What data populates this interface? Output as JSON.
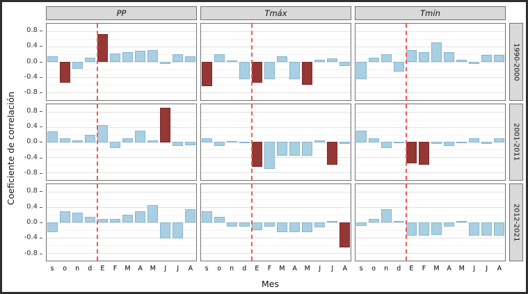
{
  "chart_data": {
    "type": "bar",
    "title": "",
    "xlabel": "Mes",
    "ylabel": "Coeficiente de correlación",
    "ylim": [
      -1.0,
      1.0
    ],
    "yticks": [
      0.8,
      0.4,
      0.0,
      -0.4,
      -0.8
    ],
    "yticks_minor": [
      0.6,
      0.2,
      -0.2,
      -0.6
    ],
    "x_categories": [
      "s",
      "o",
      "n",
      "d",
      "E",
      "F",
      "M",
      "A",
      "M",
      "J",
      "J",
      "A"
    ],
    "facet_cols": [
      "PP",
      "Tmáx",
      "Tmín"
    ],
    "facet_rows": [
      "1990-2000",
      "2001-2011",
      "2012-2021"
    ],
    "legend": "none",
    "grid": "on",
    "reference_line": {
      "between": [
        "d",
        "E"
      ],
      "position_index": 4,
      "style": "dashed",
      "color": "#f8564a"
    },
    "colors": {
      "bar": "#a9cfe3",
      "bar_border": "#86b6cd",
      "significant": "#953735",
      "significant_border": "#7a2b2a",
      "strip_bg": "#d9d9d9",
      "panel_border": "#707070"
    },
    "panels": [
      {
        "row": "1990-2000",
        "col": "PP",
        "values": [
          0.15,
          -0.55,
          -0.18,
          0.1,
          0.72,
          0.22,
          0.25,
          0.28,
          0.3,
          -0.06,
          0.2,
          0.15
        ],
        "significant": [
          false,
          true,
          false,
          false,
          true,
          false,
          false,
          false,
          false,
          false,
          false,
          false
        ]
      },
      {
        "row": "1990-2000",
        "col": "Tmáx",
        "values": [
          -0.65,
          0.2,
          0.03,
          -0.45,
          -0.55,
          -0.45,
          0.15,
          -0.45,
          -0.6,
          0.05,
          0.08,
          -0.12
        ],
        "significant": [
          true,
          false,
          false,
          false,
          true,
          false,
          false,
          false,
          true,
          false,
          false,
          false
        ]
      },
      {
        "row": "1990-2000",
        "col": "Tmín",
        "values": [
          -0.45,
          0.1,
          0.2,
          -0.25,
          0.3,
          0.25,
          0.5,
          0.25,
          0.05,
          -0.05,
          0.18,
          0.18
        ],
        "significant": [
          false,
          false,
          false,
          false,
          false,
          false,
          false,
          false,
          false,
          false,
          false,
          false
        ]
      },
      {
        "row": "2001-2011",
        "col": "PP",
        "values": [
          0.28,
          0.1,
          0.05,
          0.2,
          0.45,
          -0.15,
          0.1,
          0.3,
          0.05,
          0.9,
          -0.1,
          -0.08
        ],
        "significant": [
          false,
          false,
          false,
          false,
          false,
          false,
          false,
          false,
          false,
          true,
          false,
          false
        ]
      },
      {
        "row": "2001-2011",
        "col": "Tmáx",
        "values": [
          0.1,
          -0.1,
          0.03,
          -0.03,
          -0.65,
          -0.7,
          -0.35,
          -0.35,
          -0.35,
          0.05,
          -0.6,
          -0.05
        ],
        "significant": [
          false,
          false,
          false,
          false,
          true,
          false,
          false,
          false,
          false,
          false,
          true,
          false
        ]
      },
      {
        "row": "2001-2011",
        "col": "Tmín",
        "values": [
          0.3,
          0.1,
          -0.15,
          -0.03,
          -0.55,
          -0.6,
          -0.05,
          -0.1,
          -0.03,
          0.1,
          -0.05,
          0.1
        ],
        "significant": [
          false,
          false,
          false,
          false,
          true,
          true,
          false,
          false,
          false,
          false,
          false,
          false
        ]
      },
      {
        "row": "2012-2021",
        "col": "PP",
        "values": [
          -0.25,
          0.3,
          0.25,
          0.15,
          0.1,
          0.1,
          0.2,
          0.3,
          0.45,
          -0.42,
          -0.42,
          0.35
        ],
        "significant": [
          false,
          false,
          false,
          false,
          false,
          false,
          false,
          false,
          false,
          false,
          false,
          false
        ]
      },
      {
        "row": "2012-2021",
        "col": "Tmáx",
        "values": [
          0.3,
          0.15,
          -0.1,
          -0.1,
          -0.2,
          -0.1,
          -0.25,
          -0.25,
          -0.25,
          -0.12,
          0.03,
          -0.65
        ],
        "significant": [
          false,
          false,
          false,
          false,
          false,
          false,
          false,
          false,
          false,
          false,
          false,
          true
        ]
      },
      {
        "row": "2012-2021",
        "col": "Tmín",
        "values": [
          -0.08,
          0.1,
          0.35,
          0.03,
          -0.35,
          -0.35,
          -0.32,
          -0.1,
          0.02,
          -0.35,
          -0.35,
          -0.35
        ],
        "significant": [
          false,
          false,
          false,
          false,
          false,
          false,
          false,
          false,
          false,
          false,
          false,
          false
        ]
      }
    ]
  }
}
